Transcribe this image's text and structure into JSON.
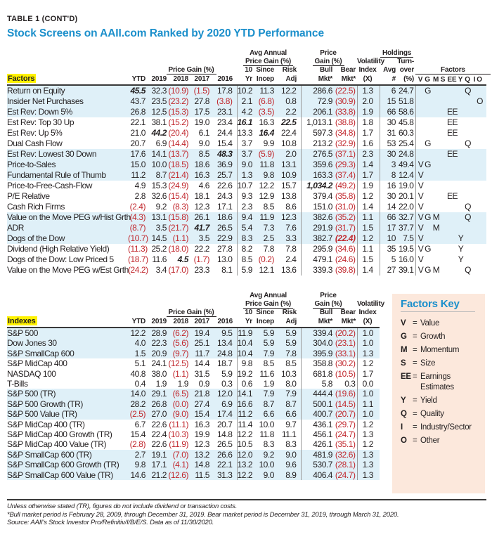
{
  "header": {
    "table_tag": "TABLE 1 (CONT'D)",
    "title": "Stock Screens on AAII.com Ranked by 2020 YTD Performance"
  },
  "columns": {
    "price_gain": "Price Gain (%)",
    "ytd": "YTD",
    "y2019": "2019",
    "y2018": "2018",
    "y2017": "2017",
    "y2016": "2016",
    "avg_annual_1": "Avg Annual",
    "avg_annual_2": "Price Gain (%)",
    "ten_1": "10",
    "ten_2": "Yr",
    "since_1": "Since",
    "since_2": "Incep",
    "risk_1": "Risk",
    "risk_2": "Adj",
    "mkt_price_1": "Price",
    "mkt_price_2": "Gain (%)",
    "bull_1": "Bull",
    "bull_2": "Mkt*",
    "bear_1": "Bear",
    "bear_2": "Mkt*",
    "vol_1": "Volatility",
    "vol_2": "Index",
    "vol_3": "(X)",
    "holdings": "Holdings",
    "avg_1": "Avg",
    "avg_2": "#",
    "turn_1": "Turn-",
    "turn_2": "over",
    "turn_3": "(%)",
    "factors": "Factors",
    "factor_codes": [
      "V",
      "G",
      "M",
      "S",
      "EE",
      "Y",
      "Q",
      "I",
      "O"
    ]
  },
  "factors_table": {
    "label": "Factors",
    "rows": [
      {
        "name": "Return on Equity",
        "values": [
          {
            "value": "45.5",
            "bold": true
          },
          "32.3",
          "(10.9)",
          "(1.5)",
          "17.8",
          "10.2",
          "11.3",
          "12.2",
          "286.6",
          "(22.5)",
          "1.3",
          "6",
          "24.7"
        ],
        "factors": [
          "G",
          "Q"
        ]
      },
      {
        "name": "Insider Net Purchases",
        "values": [
          "43.7",
          "23.5",
          "(23.2)",
          "27.8",
          "(3.8)",
          "2.1",
          "(6.8)",
          "0.8",
          "72.9",
          "(30.9)",
          "2.0",
          "15",
          "51.8"
        ],
        "factors": [
          "O"
        ]
      },
      {
        "name": "Est Rev: Down 5%",
        "values": [
          "26.8",
          "12.5",
          "(15.3)",
          "17.5",
          "23.1",
          "4.2",
          "(3.5)",
          "2.2",
          "206.1",
          "(33.8)",
          "1.9",
          "66",
          "58.6"
        ],
        "factors": [
          "EE"
        ]
      },
      {
        "name": "Est Rev: Top 30 Up",
        "values": [
          "22.1",
          "38.1",
          "(15.2)",
          "19.0",
          "23.4",
          {
            "value": "16.1",
            "bold": true
          },
          "16.3",
          {
            "value": "22.5",
            "bold": true
          },
          "1,013.1",
          "(38.8)",
          "1.8",
          "30",
          "45.8"
        ],
        "factors": [
          "EE"
        ]
      },
      {
        "name": "Est Rev: Up 5%",
        "values": [
          "21.0",
          {
            "value": "44.2",
            "bold": true
          },
          "(20.4)",
          "6.1",
          "24.4",
          "13.3",
          {
            "value": "16.4",
            "bold": true
          },
          "22.4",
          "597.3",
          "(34.8)",
          "1.7",
          "31",
          "60.3"
        ],
        "factors": [
          "EE"
        ]
      },
      {
        "name": "Dual Cash Flow",
        "values": [
          "20.7",
          "6.9",
          "(14.4)",
          "9.0",
          "15.4",
          "3.7",
          "9.9",
          "10.8",
          "213.2",
          "(32.9)",
          "1.6",
          "53",
          "25.4"
        ],
        "factors": [
          "G",
          "Q"
        ]
      },
      {
        "name": "Est Rev: Lowest 30 Down",
        "values": [
          "17.6",
          "14.1",
          "(13.7)",
          "8.5",
          {
            "value": "48.3",
            "bold": true
          },
          "3.7",
          "(5.9)",
          "2.0",
          "276.5",
          "(37.1)",
          "2.3",
          "30",
          "24.8"
        ],
        "factors": [
          "EE"
        ]
      },
      {
        "name": "Price-to-Sales",
        "values": [
          "15.0",
          "10.0",
          "(18.5)",
          "18.6",
          "36.9",
          "9.0",
          "11.8",
          "13.1",
          "359.6",
          "(29.3)",
          "1.4",
          "3",
          "49.4"
        ],
        "factors": [
          "V",
          "G"
        ]
      },
      {
        "name": "Fundamental Rule of Thumb",
        "values": [
          "11.2",
          "8.7",
          "(21.4)",
          "16.3",
          "25.7",
          "1.3",
          "9.8",
          "10.9",
          "163.3",
          "(37.4)",
          "1.7",
          "8",
          "12.4"
        ],
        "factors": [
          "V"
        ]
      },
      {
        "name": "Price-to-Free-Cash-Flow",
        "values": [
          "4.9",
          "15.3",
          "(24.9)",
          "4.6",
          "22.6",
          "10.7",
          "12.2",
          "15.7",
          {
            "value": "1,034.2",
            "bold": true
          },
          "(49.2)",
          "1.9",
          "16",
          "19.0"
        ],
        "factors": [
          "V"
        ]
      },
      {
        "name": "P/E Relative",
        "values": [
          "2.8",
          "32.6",
          "(15.4)",
          "18.1",
          "24.3",
          "9.3",
          "12.9",
          "13.8",
          "379.4",
          "(35.8)",
          "1.2",
          "30",
          "20.1"
        ],
        "factors": [
          "V",
          "EE"
        ]
      },
      {
        "name": "Cash Rich Firms",
        "values": [
          "(2.4)",
          "9.2",
          "(8.3)",
          "12.3",
          "17.1",
          "2.3",
          "8.5",
          "8.6",
          "151.0",
          "(31.0)",
          "1.4",
          "14",
          "22.0"
        ],
        "factors": [
          "V",
          "Q"
        ]
      },
      {
        "name": "Value on the Move PEG w/Hist Grth",
        "values": [
          "(4.3)",
          "13.1",
          "(15.8)",
          "26.1",
          "18.6",
          "9.4",
          "11.9",
          "12.3",
          "382.6",
          "(35.2)",
          "1.1",
          "66",
          "32.7"
        ],
        "factors": [
          "V",
          "G",
          "M",
          "Q"
        ]
      },
      {
        "name": "ADR",
        "values": [
          "(8.7)",
          "3.5",
          "(21.7)",
          {
            "value": "41.7",
            "bold": true
          },
          "26.5",
          "5.4",
          "7.3",
          "7.6",
          "291.9",
          "(31.7)",
          "1.5",
          "17",
          "37.7"
        ],
        "factors": [
          "V",
          "M"
        ]
      },
      {
        "name": "Dogs of the Dow",
        "values": [
          "(10.7)",
          "14.5",
          "(1.1)",
          "3.5",
          "22.9",
          "8.3",
          "2.5",
          "3.3",
          "382.7",
          {
            "value": "(22.4)",
            "bold": true
          },
          "1.2",
          "10",
          "7.5"
        ],
        "factors": [
          "V",
          "Y"
        ]
      },
      {
        "name": "Dividend (High Relative Yield)",
        "values": [
          "(11.3)",
          "25.2",
          "(18.0)",
          "22.2",
          "27.8",
          "8.2",
          "7.8",
          "7.8",
          "295.9",
          "(34.6)",
          "1.1",
          "35",
          "19.5"
        ],
        "factors": [
          "V",
          "G",
          "Y"
        ]
      },
      {
        "name": "Dogs of the Dow: Low Priced 5",
        "values": [
          "(18.7)",
          "11.6",
          {
            "value": "4.5",
            "bold": true
          },
          "(1.7)",
          "13.0",
          "8.5",
          "(0.2)",
          "2.4",
          "479.1",
          "(24.6)",
          "1.5",
          "5",
          "16.0"
        ],
        "factors": [
          "V",
          "Y"
        ]
      },
      {
        "name": "Value on the Move PEG w/Est Grth",
        "values": [
          "(24.2)",
          "3.4",
          "(17.0)",
          "23.3",
          "8.1",
          "5.9",
          "12.1",
          "13.6",
          "339.3",
          "(39.8)",
          "1.4",
          "27",
          "39.1"
        ],
        "factors": [
          "V",
          "G",
          "M",
          "Q"
        ]
      }
    ]
  },
  "indexes_table": {
    "label": "Indexes",
    "rows": [
      {
        "name": "S&P 500",
        "values": [
          "12.2",
          "28.9",
          "(6.2)",
          "19.4",
          "9.5",
          "11.9",
          "5.9",
          "5.9",
          "339.4",
          "(20.2)",
          "1.0"
        ]
      },
      {
        "name": "Dow Jones 30",
        "values": [
          "4.0",
          "22.3",
          "(5.6)",
          "25.1",
          "13.4",
          "10.4",
          "5.9",
          "5.9",
          "304.0",
          "(23.1)",
          "1.0"
        ]
      },
      {
        "name": "S&P SmallCap 600",
        "values": [
          "1.5",
          "20.9",
          "(9.7)",
          "11.7",
          "24.8",
          "10.4",
          "7.9",
          "7.8",
          "395.9",
          "(33.1)",
          "1.3"
        ]
      },
      {
        "name": "S&P MidCap 400",
        "values": [
          "5.1",
          "24.1",
          "(12.5)",
          "14.4",
          "18.7",
          "9.8",
          "8.5",
          "8.5",
          "358.8",
          "(30.2)",
          "1.2"
        ]
      },
      {
        "name": "NASDAQ 100",
        "values": [
          "40.8",
          "38.0",
          "(1.1)",
          "31.5",
          "5.9",
          "19.2",
          "11.6",
          "10.3",
          "681.8",
          "(10.5)",
          "1.7"
        ]
      },
      {
        "name": "T-Bills",
        "values": [
          "0.4",
          "1.9",
          "1.9",
          "0.9",
          "0.3",
          "0.6",
          "1.9",
          "8.0",
          "5.8",
          "0.3",
          "0.0"
        ]
      },
      {
        "name": "S&P 500 (TR)",
        "values": [
          "14.0",
          "29.1",
          "(6.5)",
          "21.8",
          "12.0",
          "14.1",
          "7.9",
          "7.9",
          "444.4",
          "(19.6)",
          "1.0"
        ]
      },
      {
        "name": "S&P 500 Growth (TR)",
        "values": [
          "28.2",
          "26.8",
          "(0.0)",
          "27.4",
          "6.9",
          "16.6",
          "8.7",
          "8.7",
          "500.1",
          "(14.5)",
          "1.1"
        ]
      },
      {
        "name": "S&P 500 Value (TR)",
        "values": [
          "(2.5)",
          "27.0",
          "(9.0)",
          "15.4",
          "17.4",
          "11.2",
          "6.6",
          "6.6",
          "400.7",
          "(20.7)",
          "1.0"
        ]
      },
      {
        "name": "S&P MidCap 400 (TR)",
        "values": [
          "6.7",
          "22.6",
          "(11.1)",
          "16.3",
          "20.7",
          "11.4",
          "10.0",
          "9.7",
          "436.1",
          "(29.7)",
          "1.2"
        ]
      },
      {
        "name": "S&P MidCap 400 Growth (TR)",
        "values": [
          "15.4",
          "22.4",
          "(10.3)",
          "19.9",
          "14.8",
          "12.2",
          "11.8",
          "11.1",
          "456.1",
          "(24.7)",
          "1.3"
        ]
      },
      {
        "name": "S&P MidCap 400 Value (TR)",
        "values": [
          "(2.8)",
          "22.6",
          "(11.9)",
          "12.3",
          "26.5",
          "10.5",
          "8.3",
          "8.3",
          "426.1",
          "(35.1)",
          "1.2"
        ]
      },
      {
        "name": "S&P SmallCap 600 (TR)",
        "values": [
          "2.7",
          "19.1",
          "(7.0)",
          "13.2",
          "26.6",
          "12.0",
          "9.2",
          "9.0",
          "481.9",
          "(32.6)",
          "1.3"
        ]
      },
      {
        "name": "S&P SmallCap 600 Growth (TR)",
        "values": [
          "9.8",
          "17.1",
          "(4.1)",
          "14.8",
          "22.1",
          "13.2",
          "10.0",
          "9.6",
          "530.7",
          "(28.1)",
          "1.3"
        ]
      },
      {
        "name": "S&P SmallCap 600 Value (TR)",
        "values": [
          "14.6",
          "21.2",
          "(12.6)",
          "11.5",
          "31.3",
          "12.2",
          "9.0",
          "8.9",
          "406.4",
          "(24.7)",
          "1.3"
        ]
      }
    ]
  },
  "factors_key": {
    "title": "Factors Key",
    "items": [
      {
        "code": "V",
        "desc": "Value"
      },
      {
        "code": "G",
        "desc": "Growth"
      },
      {
        "code": "M",
        "desc": "Momentum"
      },
      {
        "code": "S",
        "desc": "Size"
      },
      {
        "code": "EE",
        "desc": "Earnings Estimates"
      },
      {
        "code": "Y",
        "desc": "Yield"
      },
      {
        "code": "Q",
        "desc": "Quality"
      },
      {
        "code": "I",
        "desc": "Industry/Sector"
      },
      {
        "code": "O",
        "desc": "Other"
      }
    ]
  },
  "notes": [
    "Unless otherwise stated (TR), figures do not include dividend or transaction costs.",
    "*Bull market period is February 28, 2009, through December 31, 2019. Bear market period is December 31, 2019, through March 31, 2020.",
    "Source: AAII's Stock Investor Pro/Refinitiv/I/B/E/S. Data as of 11/30/2020."
  ],
  "colors": {
    "title": "#1b8fcb",
    "negative": "#c1272d",
    "row_shade": "#dff0f8",
    "label_highlight": "#fff200",
    "key_background": "#fce8dc"
  }
}
